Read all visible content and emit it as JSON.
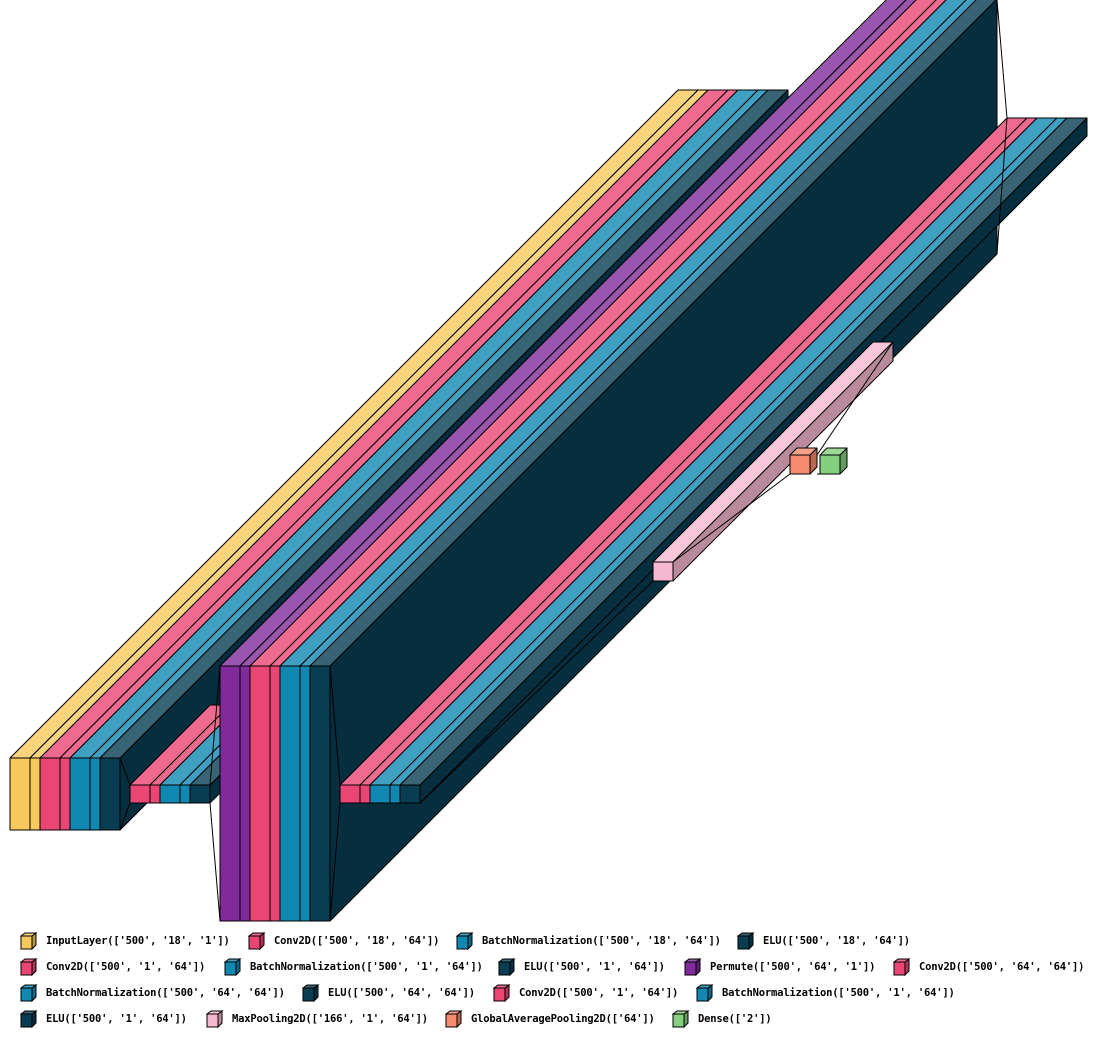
{
  "colors": {
    "input": "#f7c95c",
    "conv": "#ea4673",
    "batchnorm": "#1088b1",
    "elu": "#083d52",
    "permute": "#812a9b",
    "maxpool": "#f6b8d0",
    "gap": "#f68b6f",
    "dense": "#84d07f"
  },
  "legend": [
    {
      "label": "InputLayer(['500', '18', '1'])",
      "color": "#f7c95c"
    },
    {
      "label": "Conv2D(['500', '18', '64'])",
      "color": "#ea4673"
    },
    {
      "label": "BatchNormalization(['500', '18', '64'])",
      "color": "#1088b1"
    },
    {
      "label": "ELU(['500', '18', '64'])",
      "color": "#083d52"
    },
    {
      "label": "Conv2D(['500', '1', '64'])",
      "color": "#ea4673"
    },
    {
      "label": "BatchNormalization(['500', '1', '64'])",
      "color": "#1088b1"
    },
    {
      "label": "ELU(['500', '1', '64'])",
      "color": "#083d52"
    },
    {
      "label": "Permute(['500', '64', '1'])",
      "color": "#812a9b"
    },
    {
      "label": "Conv2D(['500', '64', '64'])",
      "color": "#ea4673"
    },
    {
      "label": "BatchNormalization(['500', '64', '64'])",
      "color": "#1088b1"
    },
    {
      "label": "ELU(['500', '64', '64'])",
      "color": "#083d52"
    },
    {
      "label": "Conv2D(['500', '1', '64'])",
      "color": "#ea4673"
    },
    {
      "label": "BatchNormalization(['500', '1', '64'])",
      "color": "#1088b1"
    },
    {
      "label": "ELU(['500', '1', '64'])",
      "color": "#083d52"
    },
    {
      "label": "MaxPooling2D(['166', '1', '64'])",
      "color": "#f6b8d0"
    },
    {
      "label": "GlobalAveragePooling2D(['64'])",
      "color": "#f68b6f"
    },
    {
      "label": "Dense(['2'])",
      "color": "#84d07f"
    }
  ]
}
